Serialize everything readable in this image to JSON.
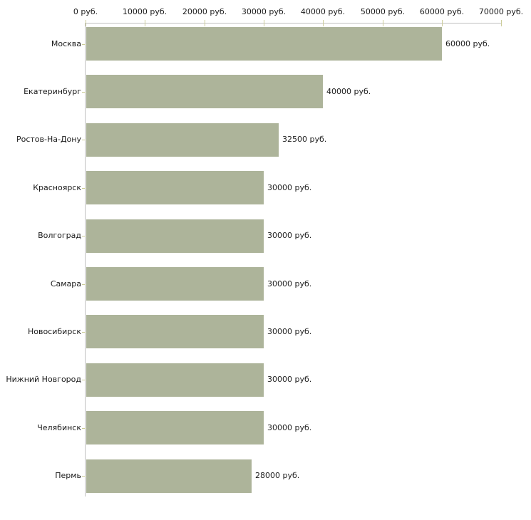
{
  "chart_data": {
    "type": "bar",
    "orientation": "horizontal",
    "unit": "руб.",
    "categories": [
      "Москва",
      "Екатеринбург",
      "Ростов-На-Дону",
      "Красноярск",
      "Волгоград",
      "Самара",
      "Новосибирск",
      "Нижний Новгород",
      "Челябинск",
      "Пермь"
    ],
    "values": [
      60000,
      40000,
      32500,
      30000,
      30000,
      30000,
      30000,
      30000,
      30000,
      28000
    ],
    "value_labels": [
      "60000 руб.",
      "40000 руб.",
      "32500 руб.",
      "30000 руб.",
      "30000 руб.",
      "30000 руб.",
      "30000 руб.",
      "30000 руб.",
      "30000 руб.",
      "28000 руб."
    ],
    "x_ticks": [
      0,
      10000,
      20000,
      30000,
      40000,
      50000,
      60000,
      70000
    ],
    "x_tick_labels": [
      "0 руб.",
      "10000 руб.",
      "20000 руб.",
      "30000 руб.",
      "40000 руб.",
      "50000 руб.",
      "60000 руб.",
      "70000 руб."
    ],
    "xlim": [
      0,
      70000
    ],
    "grid": false,
    "legend": false,
    "axis_position": "top",
    "colors": {
      "bar": "#ADB49A",
      "axis": "#C0C0C0",
      "tick": "#CCCC99",
      "text": "#1A1A1A",
      "background": "#FFFFFF"
    }
  }
}
